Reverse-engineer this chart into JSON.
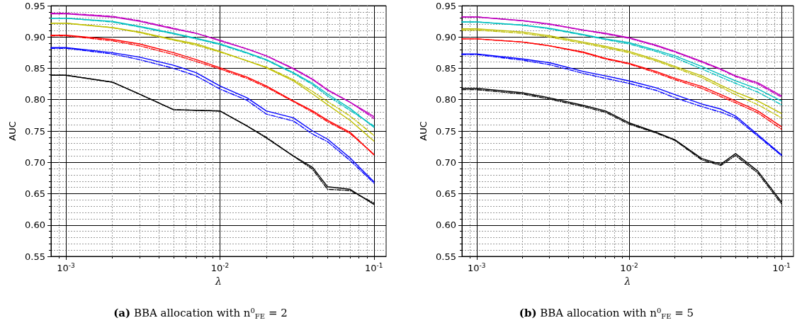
{
  "chart_data": [
    {
      "type": "line",
      "title": "(a) BBA allocation with n$^{0}$$_{FE}$ = 2",
      "xlabel": "λ",
      "ylabel": "AUC",
      "log": "x",
      "grid": true,
      "marker": "none",
      "xlim": [
        0.0008,
        0.12
      ],
      "xticks": [
        {
          "value": 0.001,
          "label": "10$^{-3}$"
        },
        {
          "value": 0.01,
          "label": "10$^{-2}$"
        },
        {
          "value": 0.1,
          "label": "10$^{-1}$"
        }
      ],
      "ylim": [
        0.55,
        0.95
      ],
      "yticks": [
        {
          "value": 0.55,
          "label": "0.55"
        },
        {
          "value": 0.6,
          "label": "0.60"
        },
        {
          "value": 0.65,
          "label": "0.65"
        },
        {
          "value": 0.7,
          "label": "0.70"
        },
        {
          "value": 0.75,
          "label": "0.75"
        },
        {
          "value": 0.8,
          "label": "0.80"
        },
        {
          "value": 0.85,
          "label": "0.85"
        },
        {
          "value": 0.9,
          "label": "0.90"
        },
        {
          "value": 0.95,
          "label": "0.95"
        }
      ],
      "x": [
        0.0008,
        0.001,
        0.002,
        0.003,
        0.005,
        0.007,
        0.01,
        0.015,
        0.02,
        0.03,
        0.04,
        0.05,
        0.07,
        0.1
      ],
      "series": [
        {
          "color": "#bf00bf",
          "line_style": "solid",
          "values": [
            0.937,
            0.937,
            0.932,
            0.925,
            0.913,
            0.906,
            0.894,
            0.881,
            0.87,
            0.849,
            0.832,
            0.815,
            0.796,
            0.773
          ]
        },
        {
          "color": "#bf00bf",
          "line_style": "dashed",
          "values": [
            0.938,
            0.938,
            0.933,
            0.926,
            0.914,
            0.906,
            0.895,
            0.881,
            0.87,
            0.85,
            0.833,
            0.816,
            0.796,
            0.77
          ]
        },
        {
          "color": "#00bfbf",
          "line_style": "solid",
          "values": [
            0.93,
            0.93,
            0.925,
            0.917,
            0.906,
            0.898,
            0.889,
            0.875,
            0.864,
            0.843,
            0.826,
            0.809,
            0.786,
            0.756
          ]
        },
        {
          "color": "#00bfbf",
          "line_style": "dashed",
          "values": [
            0.93,
            0.93,
            0.924,
            0.916,
            0.905,
            0.897,
            0.888,
            0.874,
            0.863,
            0.842,
            0.824,
            0.806,
            0.783,
            0.758
          ]
        },
        {
          "color": "#bfbf00",
          "line_style": "solid",
          "values": [
            0.922,
            0.922,
            0.915,
            0.908,
            0.896,
            0.889,
            0.877,
            0.862,
            0.851,
            0.83,
            0.809,
            0.792,
            0.767,
            0.734
          ]
        },
        {
          "color": "#bfbf00",
          "line_style": "dashed",
          "values": [
            0.922,
            0.922,
            0.915,
            0.907,
            0.895,
            0.887,
            0.876,
            0.862,
            0.852,
            0.832,
            0.813,
            0.797,
            0.774,
            0.743
          ]
        },
        {
          "color": "#ff0000",
          "line_style": "solid",
          "values": [
            0.903,
            0.903,
            0.896,
            0.889,
            0.875,
            0.864,
            0.851,
            0.836,
            0.822,
            0.798,
            0.782,
            0.767,
            0.748,
            0.712
          ]
        },
        {
          "color": "#ff0000",
          "line_style": "dashed",
          "values": [
            0.902,
            0.902,
            0.894,
            0.886,
            0.872,
            0.861,
            0.849,
            0.834,
            0.82,
            0.797,
            0.78,
            0.765,
            0.746,
            0.713
          ]
        },
        {
          "color": "#0000ff",
          "line_style": "solid",
          "values": [
            0.883,
            0.883,
            0.875,
            0.868,
            0.855,
            0.843,
            0.822,
            0.803,
            0.782,
            0.771,
            0.75,
            0.737,
            0.707,
            0.669
          ]
        },
        {
          "color": "#0000ff",
          "line_style": "dashed",
          "values": [
            0.882,
            0.882,
            0.873,
            0.864,
            0.85,
            0.838,
            0.817,
            0.799,
            0.777,
            0.766,
            0.745,
            0.733,
            0.703,
            0.667
          ]
        },
        {
          "color": "#000000",
          "line_style": "solid",
          "values": [
            0.839,
            0.839,
            0.828,
            0.809,
            0.784,
            0.783,
            0.782,
            0.758,
            0.739,
            0.71,
            0.692,
            0.661,
            0.657,
            0.633
          ]
        },
        {
          "color": "#000000",
          "line_style": "dashed",
          "values": [
            0.839,
            0.839,
            0.828,
            0.809,
            0.784,
            0.783,
            0.782,
            0.758,
            0.74,
            0.71,
            0.689,
            0.657,
            0.655,
            0.635
          ]
        }
      ]
    },
    {
      "type": "line",
      "title": "(b) BBA allocation with n$^{0}$$_{FE}$ = 5",
      "xlabel": "λ",
      "ylabel": "AUC",
      "log": "x",
      "grid": true,
      "marker": "none",
      "xlim": [
        0.0008,
        0.12
      ],
      "xticks": [
        {
          "value": 0.001,
          "label": "10$^{-3}$"
        },
        {
          "value": 0.01,
          "label": "10$^{-2}$"
        },
        {
          "value": 0.1,
          "label": "10$^{-1}$"
        }
      ],
      "ylim": [
        0.55,
        0.95
      ],
      "yticks": [
        {
          "value": 0.55,
          "label": "0.55"
        },
        {
          "value": 0.6,
          "label": "0.60"
        },
        {
          "value": 0.65,
          "label": "0.65"
        },
        {
          "value": 0.7,
          "label": "0.70"
        },
        {
          "value": 0.75,
          "label": "0.75"
        },
        {
          "value": 0.8,
          "label": "0.80"
        },
        {
          "value": 0.85,
          "label": "0.85"
        },
        {
          "value": 0.9,
          "label": "0.90"
        },
        {
          "value": 0.95,
          "label": "0.95"
        }
      ],
      "x": [
        0.0008,
        0.001,
        0.002,
        0.003,
        0.005,
        0.007,
        0.01,
        0.015,
        0.02,
        0.03,
        0.04,
        0.05,
        0.07,
        0.1
      ],
      "series": [
        {
          "color": "#bf00bf",
          "line_style": "solid",
          "values": [
            0.932,
            0.932,
            0.926,
            0.921,
            0.911,
            0.906,
            0.899,
            0.887,
            0.877,
            0.861,
            0.849,
            0.838,
            0.827,
            0.806
          ]
        },
        {
          "color": "#bf00bf",
          "line_style": "dashed",
          "values": [
            0.932,
            0.932,
            0.926,
            0.92,
            0.911,
            0.905,
            0.898,
            0.886,
            0.876,
            0.86,
            0.848,
            0.837,
            0.825,
            0.804
          ]
        },
        {
          "color": "#00bfbf",
          "line_style": "solid",
          "values": [
            0.924,
            0.924,
            0.919,
            0.914,
            0.904,
            0.897,
            0.891,
            0.879,
            0.87,
            0.853,
            0.84,
            0.83,
            0.817,
            0.798
          ]
        },
        {
          "color": "#00bfbf",
          "line_style": "dashed",
          "values": [
            0.924,
            0.924,
            0.919,
            0.913,
            0.903,
            0.896,
            0.889,
            0.877,
            0.867,
            0.849,
            0.836,
            0.826,
            0.812,
            0.792
          ]
        },
        {
          "color": "#bfbf00",
          "line_style": "solid",
          "values": [
            0.913,
            0.913,
            0.908,
            0.902,
            0.892,
            0.885,
            0.877,
            0.864,
            0.853,
            0.838,
            0.823,
            0.812,
            0.798,
            0.778
          ]
        },
        {
          "color": "#bfbf00",
          "line_style": "dashed",
          "values": [
            0.911,
            0.911,
            0.906,
            0.9,
            0.89,
            0.883,
            0.875,
            0.862,
            0.851,
            0.835,
            0.82,
            0.808,
            0.792,
            0.771
          ]
        },
        {
          "color": "#ff0000",
          "line_style": "solid",
          "values": [
            0.897,
            0.897,
            0.892,
            0.886,
            0.876,
            0.866,
            0.858,
            0.845,
            0.834,
            0.821,
            0.808,
            0.798,
            0.782,
            0.757
          ]
        },
        {
          "color": "#ff0000",
          "line_style": "dashed",
          "values": [
            0.897,
            0.897,
            0.892,
            0.886,
            0.875,
            0.865,
            0.857,
            0.843,
            0.832,
            0.818,
            0.805,
            0.795,
            0.779,
            0.753
          ]
        },
        {
          "color": "#0000ff",
          "line_style": "solid",
          "values": [
            0.873,
            0.873,
            0.865,
            0.859,
            0.845,
            0.838,
            0.83,
            0.819,
            0.808,
            0.793,
            0.785,
            0.774,
            0.744,
            0.712
          ]
        },
        {
          "color": "#0000ff",
          "line_style": "dashed",
          "values": [
            0.872,
            0.872,
            0.863,
            0.856,
            0.842,
            0.834,
            0.826,
            0.815,
            0.803,
            0.789,
            0.78,
            0.771,
            0.742,
            0.711
          ]
        },
        {
          "color": "#000000",
          "line_style": "solid",
          "values": [
            0.818,
            0.818,
            0.811,
            0.803,
            0.791,
            0.782,
            0.763,
            0.748,
            0.736,
            0.706,
            0.697,
            0.714,
            0.686,
            0.637
          ]
        },
        {
          "color": "#000000",
          "line_style": "dashed",
          "values": [
            0.816,
            0.816,
            0.809,
            0.801,
            0.789,
            0.78,
            0.761,
            0.747,
            0.735,
            0.704,
            0.695,
            0.711,
            0.683,
            0.634
          ]
        }
      ]
    }
  ]
}
